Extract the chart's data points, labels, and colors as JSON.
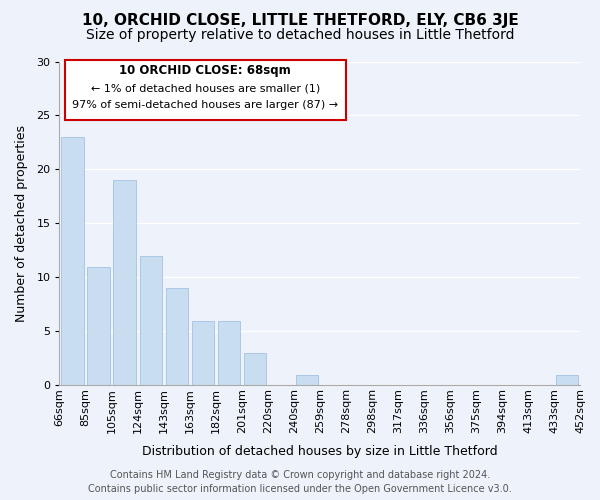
{
  "title": "10, ORCHID CLOSE, LITTLE THETFORD, ELY, CB6 3JE",
  "subtitle": "Size of property relative to detached houses in Little Thetford",
  "xlabel": "Distribution of detached houses by size in Little Thetford",
  "ylabel": "Number of detached properties",
  "bar_color": "#c8ddf0",
  "bar_edge_color": "#aac8e8",
  "annotation_box_color": "#cc0000",
  "annotation_text_line1": "10 ORCHID CLOSE: 68sqm",
  "annotation_text_line2": "← 1% of detached houses are smaller (1)",
  "annotation_text_line3": "97% of semi-detached houses are larger (87) →",
  "footer_line1": "Contains HM Land Registry data © Crown copyright and database right 2024.",
  "footer_line2": "Contains public sector information licensed under the Open Government Licence v3.0.",
  "tick_labels": [
    "66sqm",
    "85sqm",
    "105sqm",
    "124sqm",
    "143sqm",
    "163sqm",
    "182sqm",
    "201sqm",
    "220sqm",
    "240sqm",
    "259sqm",
    "278sqm",
    "298sqm",
    "317sqm",
    "336sqm",
    "356sqm",
    "375sqm",
    "394sqm",
    "413sqm",
    "433sqm",
    "452sqm"
  ],
  "counts": [
    23,
    11,
    19,
    12,
    9,
    6,
    6,
    3,
    0,
    1,
    0,
    0,
    0,
    0,
    0,
    0,
    0,
    0,
    0,
    1
  ],
  "ylim": [
    0,
    30
  ],
  "yticks": [
    0,
    5,
    10,
    15,
    20,
    25,
    30
  ],
  "background_color": "#eef2fa",
  "grid_color": "#ffffff",
  "title_fontsize": 11,
  "subtitle_fontsize": 10,
  "axis_label_fontsize": 9,
  "tick_fontsize": 8,
  "footer_fontsize": 7
}
